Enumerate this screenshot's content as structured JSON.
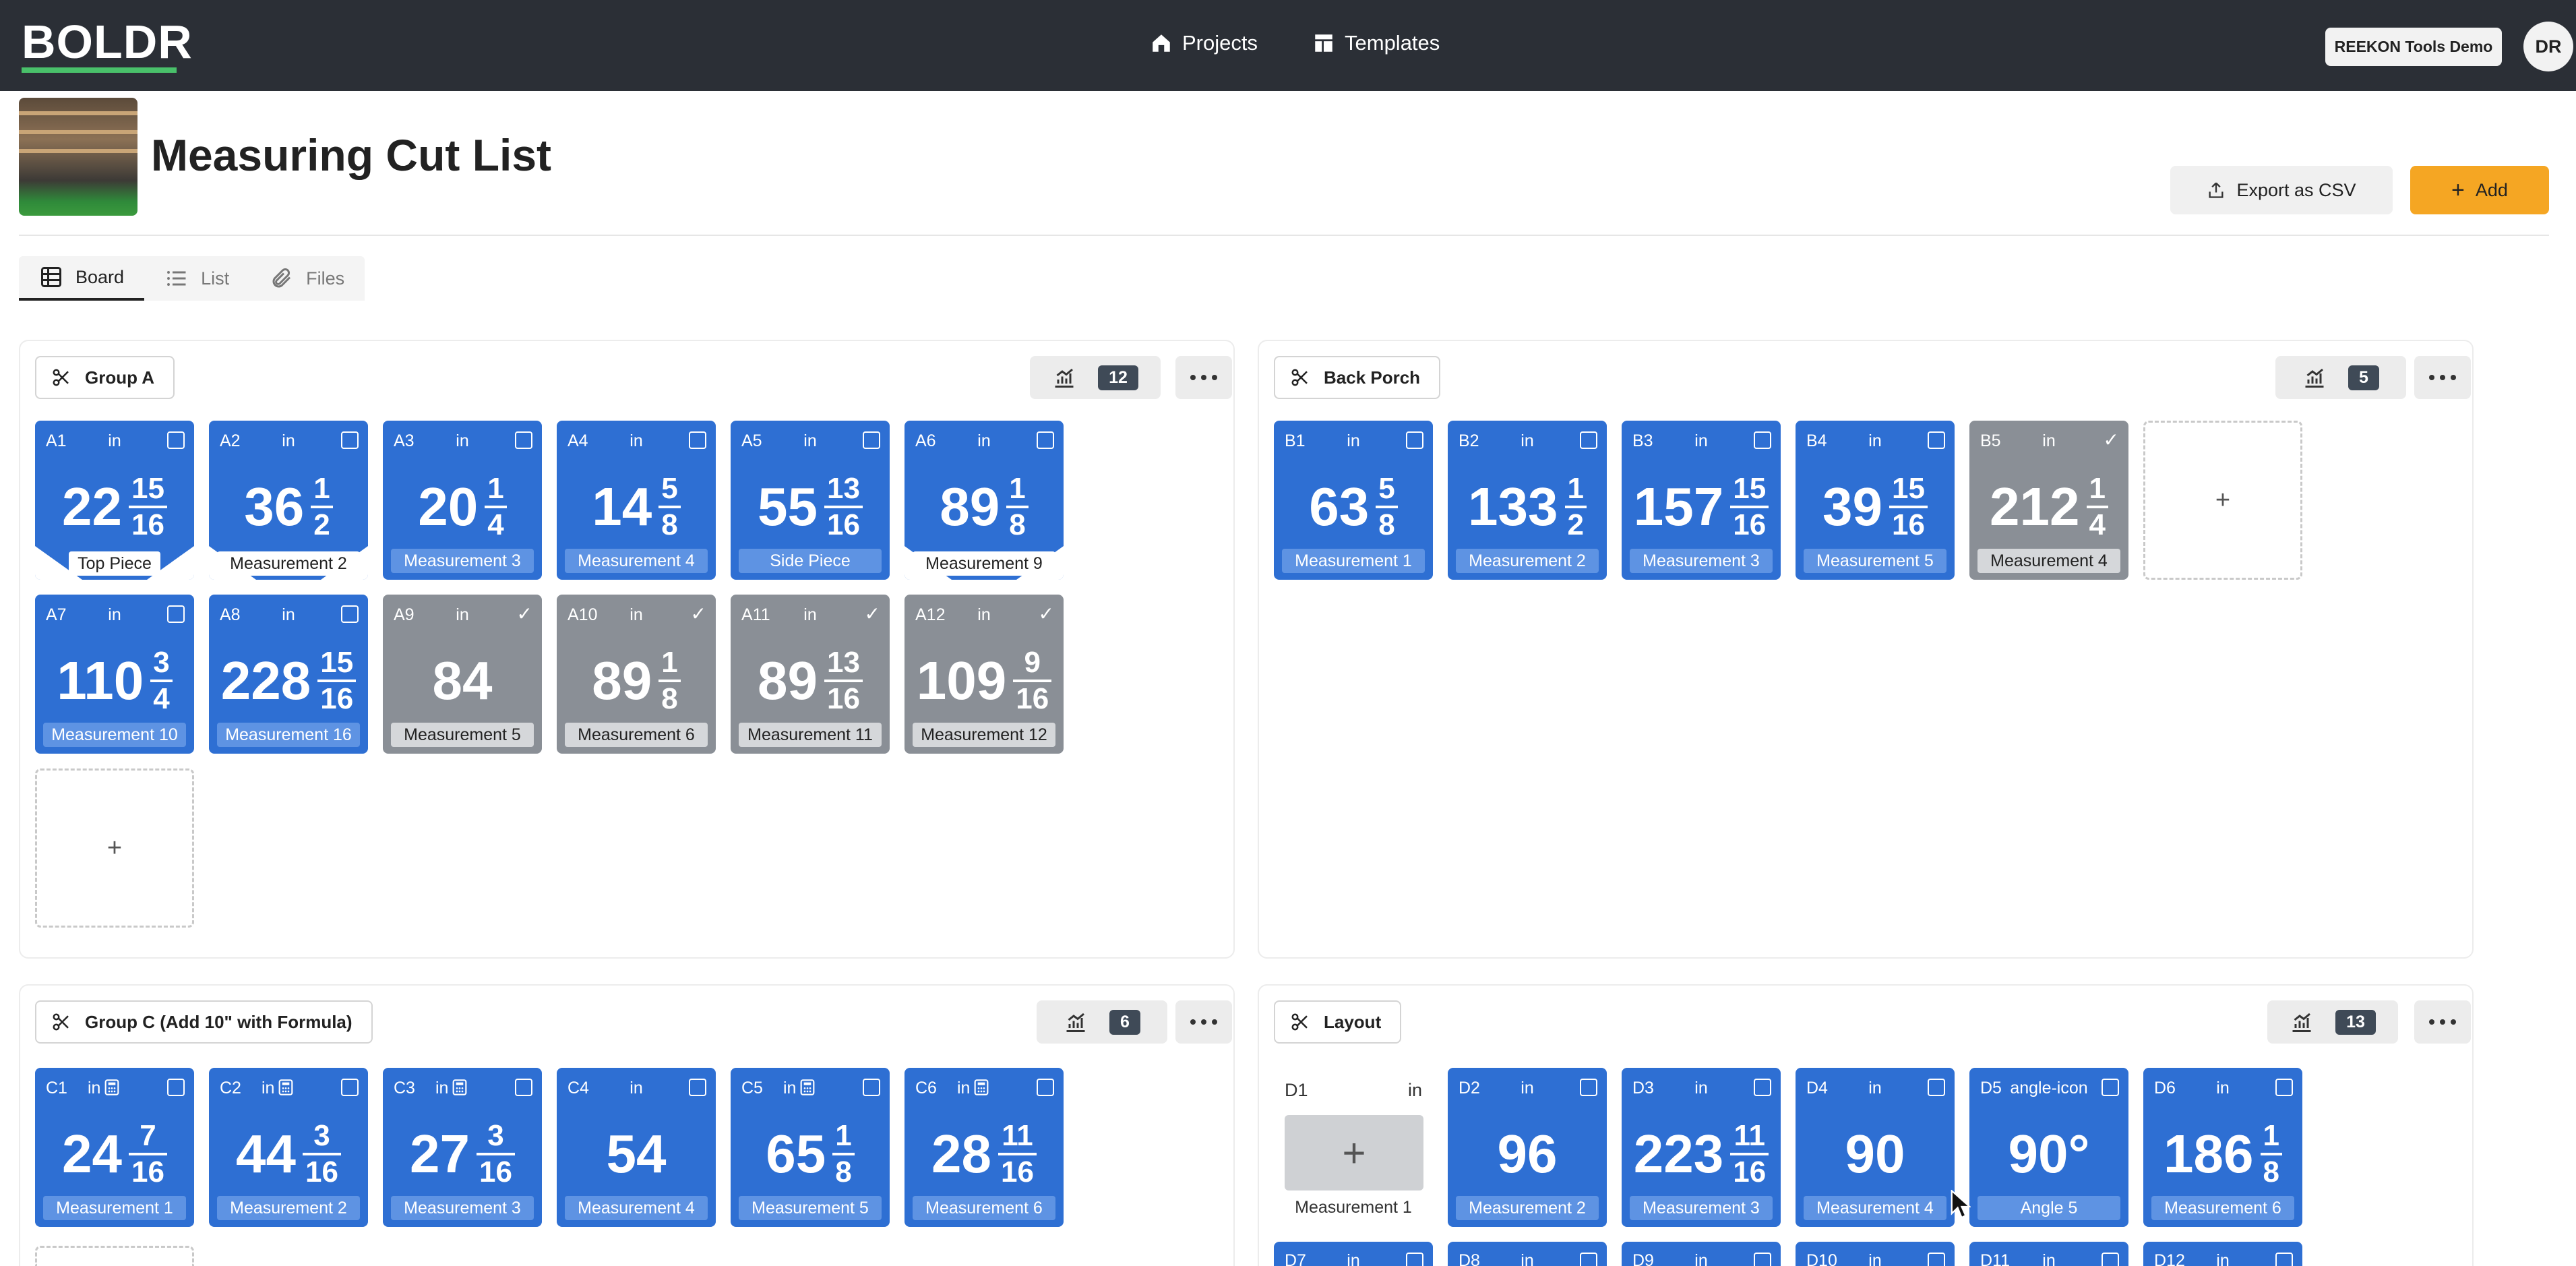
{
  "nav": {
    "logo": "BOLDR",
    "projects": "Projects",
    "templates": "Templates",
    "org": "REEKON Tools Demo",
    "avatar": "DR"
  },
  "header": {
    "title": "Measuring Cut List",
    "export_label": "Export as CSV",
    "add_label": "Add"
  },
  "tabs": [
    "Board",
    "List",
    "Files"
  ],
  "groups": {
    "a": {
      "name": "Group A",
      "count": "12",
      "cards": [
        {
          "id": "A1",
          "unit": "in",
          "whole": "22",
          "num": "15",
          "den": "16",
          "label": "Top Piece",
          "checked": false
        },
        {
          "id": "A2",
          "unit": "in",
          "whole": "36",
          "num": "1",
          "den": "2",
          "label": "Measurement 2",
          "checked": false
        },
        {
          "id": "A3",
          "unit": "in",
          "whole": "20",
          "num": "1",
          "den": "4",
          "label": "Measurement 3",
          "checked": false
        },
        {
          "id": "A4",
          "unit": "in",
          "whole": "14",
          "num": "5",
          "den": "8",
          "label": "Measurement 4",
          "checked": false
        },
        {
          "id": "A5",
          "unit": "in",
          "whole": "55",
          "num": "13",
          "den": "16",
          "label": "Side Piece",
          "checked": false
        },
        {
          "id": "A6",
          "unit": "in",
          "whole": "89",
          "num": "1",
          "den": "8",
          "label": "Measurement 9",
          "checked": false
        },
        {
          "id": "A7",
          "unit": "in",
          "whole": "110",
          "num": "3",
          "den": "4",
          "label": "Measurement 10",
          "checked": false
        },
        {
          "id": "A8",
          "unit": "in",
          "whole": "228",
          "num": "15",
          "den": "16",
          "label": "Measurement 16",
          "checked": false
        },
        {
          "id": "A9",
          "unit": "in",
          "whole": "84",
          "num": "",
          "den": "",
          "label": "Measurement 5",
          "checked": true
        },
        {
          "id": "A10",
          "unit": "in",
          "whole": "89",
          "num": "1",
          "den": "8",
          "label": "Measurement 6",
          "checked": true
        },
        {
          "id": "A11",
          "unit": "in",
          "whole": "89",
          "num": "13",
          "den": "16",
          "label": "Measurement 11",
          "checked": true
        },
        {
          "id": "A12",
          "unit": "in",
          "whole": "109",
          "num": "9",
          "den": "16",
          "label": "Measurement 12",
          "checked": true
        }
      ]
    },
    "b": {
      "name": "Back Porch",
      "count": "5",
      "cards": [
        {
          "id": "B1",
          "unit": "in",
          "whole": "63",
          "num": "5",
          "den": "8",
          "label": "Measurement 1",
          "checked": false
        },
        {
          "id": "B2",
          "unit": "in",
          "whole": "133",
          "num": "1",
          "den": "2",
          "label": "Measurement 2",
          "checked": false
        },
        {
          "id": "B3",
          "unit": "in",
          "whole": "157",
          "num": "15",
          "den": "16",
          "label": "Measurement 3",
          "checked": false
        },
        {
          "id": "B4",
          "unit": "in",
          "whole": "39",
          "num": "15",
          "den": "16",
          "label": "Measurement 5",
          "checked": false
        },
        {
          "id": "B5",
          "unit": "in",
          "whole": "212",
          "num": "1",
          "den": "4",
          "label": "Measurement 4",
          "checked": true
        }
      ]
    },
    "c": {
      "name": "Group C (Add 10\" with Formula)",
      "count": "6",
      "cards": [
        {
          "id": "C1",
          "unit": "in",
          "whole": "24",
          "num": "7",
          "den": "16",
          "label": "Measurement 1"
        },
        {
          "id": "C2",
          "unit": "in",
          "whole": "44",
          "num": "3",
          "den": "16",
          "label": "Measurement 2"
        },
        {
          "id": "C3",
          "unit": "in",
          "whole": "27",
          "num": "3",
          "den": "16",
          "label": "Measurement 3"
        },
        {
          "id": "C4",
          "unit": "in",
          "whole": "54",
          "num": "",
          "den": "",
          "label": "Measurement 4"
        },
        {
          "id": "C5",
          "unit": "in",
          "whole": "65",
          "num": "1",
          "den": "8",
          "label": "Measurement 5"
        },
        {
          "id": "C6",
          "unit": "in",
          "whole": "28",
          "num": "11",
          "den": "16",
          "label": "Measurement 6"
        }
      ]
    },
    "d": {
      "name": "Layout",
      "count": "13",
      "d1": {
        "id": "D1",
        "unit": "in",
        "label": "Measurement 1"
      },
      "cards": [
        {
          "id": "D2",
          "unit": "in",
          "whole": "96",
          "num": "",
          "den": "",
          "label": "Measurement 2"
        },
        {
          "id": "D3",
          "unit": "in",
          "whole": "223",
          "num": "11",
          "den": "16",
          "label": "Measurement 3"
        },
        {
          "id": "D4",
          "unit": "in",
          "whole": "90",
          "num": "",
          "den": "",
          "label": "Measurement 4"
        },
        {
          "id": "D5",
          "unit": "angle-icon",
          "whole": "90°",
          "num": "",
          "den": "",
          "label": "Angle 5"
        },
        {
          "id": "D6",
          "unit": "in",
          "whole": "186",
          "num": "1",
          "den": "8",
          "label": "Measurement 6"
        }
      ],
      "peek": [
        "D7",
        "D8",
        "D9",
        "D10",
        "D11",
        "D12"
      ]
    }
  },
  "colors": {
    "card_blue": "#2e6fd3",
    "card_done": "#8a8f96",
    "add_orange": "#f5a623",
    "topbar": "#2b2f36"
  }
}
